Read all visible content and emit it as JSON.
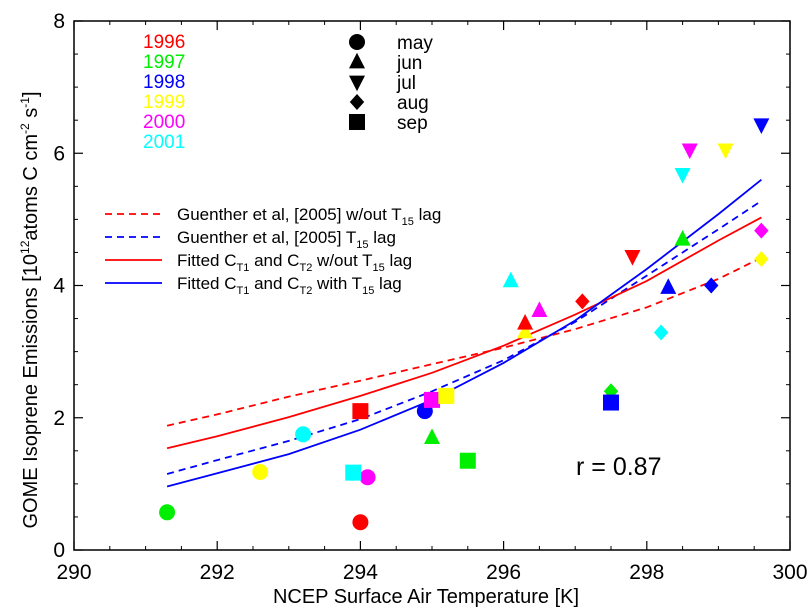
{
  "chart_data": {
    "type": "scatter",
    "xlabel": "NCEP Surface Air Temperature [K]",
    "ylabel": {
      "prefix": "GOME Isoprene Emissions [10",
      "exp": "12",
      "mid": "atoms C cm",
      "exp2": "-2",
      "mid2": " s",
      "exp3": "-1",
      "suffix": "]"
    },
    "xlim": [
      290,
      300
    ],
    "ylim": [
      0,
      8
    ],
    "xticks": [
      "290",
      "292",
      "294",
      "296",
      "298",
      "300"
    ],
    "yticks": [
      "0",
      "2",
      "4",
      "6",
      "8"
    ],
    "year_legend": [
      {
        "year": "1996",
        "color": "#ff0000"
      },
      {
        "year": "1997",
        "color": "#00ee00"
      },
      {
        "year": "1998",
        "color": "#0000ff"
      },
      {
        "year": "1999",
        "color": "#ffff00"
      },
      {
        "year": "2000",
        "color": "#ff00ff"
      },
      {
        "year": "2001",
        "color": "#00ffff"
      }
    ],
    "month_legend": [
      {
        "month": "may",
        "shape": "circle"
      },
      {
        "month": "jun",
        "shape": "triangle-up"
      },
      {
        "month": "jul",
        "shape": "triangle-down"
      },
      {
        "month": "aug",
        "shape": "diamond"
      },
      {
        "month": "sep",
        "shape": "square"
      }
    ],
    "line_legend": [
      {
        "color": "#ff0000",
        "dash": true,
        "parts": [
          "Guenther et al, [2005] w/out T",
          "15",
          " lag"
        ]
      },
      {
        "color": "#0000ff",
        "dash": true,
        "parts": [
          "Guenther et al, [2005] T",
          "15",
          " lag"
        ]
      },
      {
        "color": "#ff0000",
        "dash": false,
        "parts": [
          "Fitted C",
          "T1",
          " and C",
          "T2",
          " w/out T",
          "15",
          " lag"
        ]
      },
      {
        "color": "#0000ff",
        "dash": false,
        "parts": [
          "Fitted C",
          "T1",
          " and C",
          "T2",
          " with T",
          "15",
          " lag"
        ]
      }
    ],
    "annotation": "r = 0.87",
    "curves": [
      {
        "color": "#ff0000",
        "dash": true,
        "x": [
          291.3,
          292,
          293,
          294,
          295,
          296,
          297,
          298,
          299,
          299.6
        ],
        "y": [
          1.88,
          2.05,
          2.32,
          2.56,
          2.81,
          3.06,
          3.34,
          3.67,
          4.1,
          4.42
        ]
      },
      {
        "color": "#0000ff",
        "dash": true,
        "x": [
          291.3,
          292,
          293,
          294,
          295,
          296,
          297,
          298,
          299,
          299.6
        ],
        "y": [
          1.15,
          1.36,
          1.65,
          1.98,
          2.4,
          2.87,
          3.45,
          4.15,
          4.85,
          5.28
        ]
      },
      {
        "color": "#ff0000",
        "dash": false,
        "x": [
          291.3,
          292,
          293,
          294,
          295,
          296,
          297,
          298,
          299,
          299.6
        ],
        "y": [
          1.54,
          1.72,
          2.01,
          2.33,
          2.68,
          3.09,
          3.56,
          4.07,
          4.68,
          5.03
        ]
      },
      {
        "color": "#0000ff",
        "dash": false,
        "x": [
          291.3,
          292,
          293,
          294,
          295,
          296,
          297,
          298,
          299,
          299.6
        ],
        "y": [
          0.96,
          1.16,
          1.45,
          1.82,
          2.27,
          2.83,
          3.47,
          4.25,
          5.08,
          5.6
        ]
      }
    ],
    "points": [
      {
        "x": 291.3,
        "y": 0.57,
        "color": "#00ee00",
        "shape": "circle"
      },
      {
        "x": 292.6,
        "y": 1.18,
        "color": "#ffff00",
        "shape": "circle"
      },
      {
        "x": 293.2,
        "y": 1.75,
        "color": "#00ffff",
        "shape": "circle"
      },
      {
        "x": 294.0,
        "y": 0.42,
        "color": "#ff0000",
        "shape": "circle"
      },
      {
        "x": 294.1,
        "y": 1.1,
        "color": "#ff00ff",
        "shape": "circle"
      },
      {
        "x": 294.9,
        "y": 2.1,
        "color": "#0000ff",
        "shape": "circle"
      },
      {
        "x": 295.0,
        "y": 1.7,
        "color": "#00ee00",
        "shape": "triangle-up"
      },
      {
        "x": 296.1,
        "y": 4.07,
        "color": "#00ffff",
        "shape": "triangle-up"
      },
      {
        "x": 296.3,
        "y": 3.3,
        "color": "#ffff00",
        "shape": "triangle-up"
      },
      {
        "x": 296.3,
        "y": 3.43,
        "color": "#ff0000",
        "shape": "triangle-up"
      },
      {
        "x": 296.5,
        "y": 3.62,
        "color": "#ff00ff",
        "shape": "triangle-up"
      },
      {
        "x": 298.3,
        "y": 3.97,
        "color": "#0000ff",
        "shape": "triangle-up"
      },
      {
        "x": 298.5,
        "y": 4.7,
        "color": "#00ee00",
        "shape": "triangle-up"
      },
      {
        "x": 297.8,
        "y": 4.44,
        "color": "#ff0000",
        "shape": "triangle-down"
      },
      {
        "x": 298.5,
        "y": 5.68,
        "color": "#00ffff",
        "shape": "triangle-down"
      },
      {
        "x": 298.6,
        "y": 6.05,
        "color": "#ff00ff",
        "shape": "triangle-down"
      },
      {
        "x": 299.1,
        "y": 6.05,
        "color": "#ffff00",
        "shape": "triangle-down"
      },
      {
        "x": 299.6,
        "y": 6.43,
        "color": "#0000ff",
        "shape": "triangle-down"
      },
      {
        "x": 297.1,
        "y": 3.76,
        "color": "#ff0000",
        "shape": "diamond"
      },
      {
        "x": 297.5,
        "y": 2.4,
        "color": "#00ee00",
        "shape": "diamond"
      },
      {
        "x": 298.2,
        "y": 3.29,
        "color": "#00ffff",
        "shape": "diamond"
      },
      {
        "x": 298.9,
        "y": 4.0,
        "color": "#0000ff",
        "shape": "diamond"
      },
      {
        "x": 299.6,
        "y": 4.4,
        "color": "#ffff00",
        "shape": "diamond"
      },
      {
        "x": 299.6,
        "y": 4.83,
        "color": "#ff00ff",
        "shape": "diamond"
      },
      {
        "x": 294.0,
        "y": 2.1,
        "color": "#ff0000",
        "shape": "square"
      },
      {
        "x": 293.9,
        "y": 1.17,
        "color": "#00ffff",
        "shape": "square"
      },
      {
        "x": 295.0,
        "y": 2.27,
        "color": "#ff00ff",
        "shape": "square"
      },
      {
        "x": 295.2,
        "y": 2.33,
        "color": "#ffff00",
        "shape": "square"
      },
      {
        "x": 295.5,
        "y": 1.35,
        "color": "#00ee00",
        "shape": "square"
      },
      {
        "x": 297.5,
        "y": 2.23,
        "color": "#0000ff",
        "shape": "square"
      }
    ]
  }
}
